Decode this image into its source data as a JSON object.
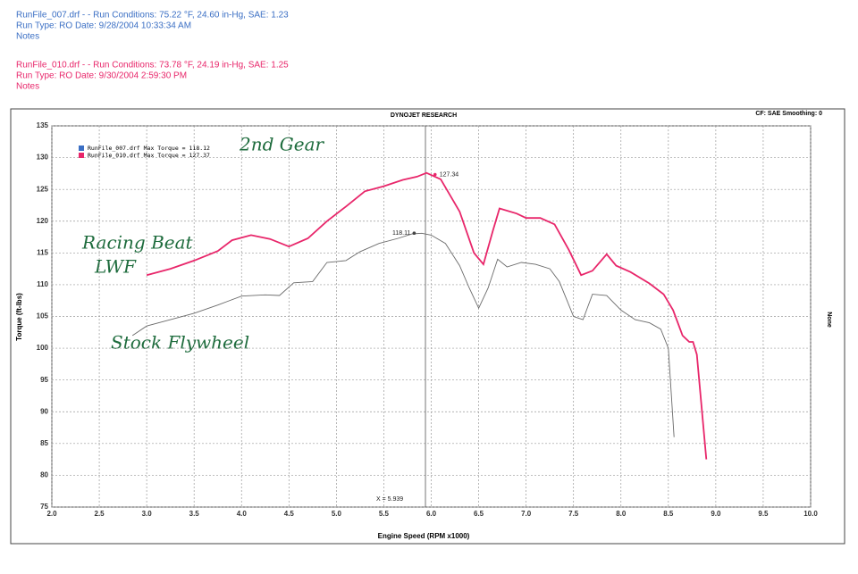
{
  "header": {
    "run1": [
      "RunFile_007.drf -  -  Run Conditions: 75.22 °F, 24.60 in-Hg, SAE: 1.23",
      "Run Type: RO  Date: 9/28/2004 10:33:34 AM",
      "Notes"
    ],
    "run2": [
      "RunFile_010.drf -  -  Run Conditions: 73.78 °F, 24.19 in-Hg, SAE: 1.25",
      "Run Type: RO  Date: 9/30/2004 2:59:30 PM",
      "Notes"
    ]
  },
  "chart_data": {
    "type": "line",
    "title": "DYNOJET RESEARCH",
    "subtitle": "CF: SAE  Smoothing: 0",
    "x_label": "Engine Speed (RPM x1000)",
    "y_label": "Torque (ft-lbs)",
    "y2_label": "None",
    "xlim": [
      2.0,
      10.0
    ],
    "ylim": [
      75,
      135
    ],
    "xticks": [
      {
        "value": 2.0,
        "label": "2.0"
      },
      {
        "value": 2.5,
        "label": "2.5"
      },
      {
        "value": 3.0,
        "label": "3.0"
      },
      {
        "value": 3.5,
        "label": "3.5"
      },
      {
        "value": 4.0,
        "label": "4.0"
      },
      {
        "value": 4.5,
        "label": "4.5"
      },
      {
        "value": 5.0,
        "label": "5.0"
      },
      {
        "value": 5.5,
        "label": "5.5"
      },
      {
        "value": 6.0,
        "label": "6.0"
      },
      {
        "value": 6.5,
        "label": "6.5"
      },
      {
        "value": 7.0,
        "label": "7.0"
      },
      {
        "value": 7.5,
        "label": "7.5"
      },
      {
        "value": 8.0,
        "label": "8.0"
      },
      {
        "value": 8.5,
        "label": "8.5"
      },
      {
        "value": 9.0,
        "label": "9.0"
      },
      {
        "value": 9.5,
        "label": "9.5"
      },
      {
        "value": 10.0,
        "label": "10.0"
      }
    ],
    "yticks": [
      75,
      80,
      85,
      90,
      95,
      100,
      105,
      110,
      115,
      120,
      125,
      130,
      135
    ],
    "grid": true,
    "series": [
      {
        "name": "RunFile_007.drf Max Torque = 118.12",
        "color": "#6a6a6a",
        "legend_color": "#3b6fc4",
        "x": [
          2.85,
          3.0,
          3.25,
          3.5,
          3.75,
          4.0,
          4.25,
          4.4,
          4.55,
          4.75,
          4.9,
          5.1,
          5.25,
          5.45,
          5.65,
          5.8,
          5.9,
          6.0,
          6.15,
          6.3,
          6.4,
          6.5,
          6.6,
          6.7,
          6.8,
          6.95,
          7.1,
          7.25,
          7.35,
          7.5,
          7.6,
          7.7,
          7.85,
          8.0,
          8.15,
          8.3,
          8.42,
          8.5,
          8.53,
          8.56
        ],
        "values": [
          102,
          103.5,
          104.5,
          105.5,
          106.8,
          108.2,
          108.4,
          108.3,
          110.3,
          110.5,
          113.5,
          113.8,
          115.2,
          116.5,
          117.3,
          118.0,
          118.1,
          117.8,
          116.5,
          113.0,
          109.5,
          106.3,
          109.5,
          114.0,
          112.8,
          113.5,
          113.2,
          112.5,
          110.5,
          105.0,
          104.5,
          108.5,
          108.3,
          106.0,
          104.5,
          104.0,
          103.0,
          100.0,
          93.0,
          86.0
        ]
      },
      {
        "name": "RunFile_010.drf Max Torque = 127.37",
        "color": "#e8266a",
        "legend_color": "#e8266a",
        "x": [
          3.0,
          3.25,
          3.5,
          3.75,
          3.9,
          4.1,
          4.3,
          4.5,
          4.7,
          4.9,
          5.1,
          5.3,
          5.5,
          5.7,
          5.85,
          5.95,
          6.1,
          6.3,
          6.45,
          6.55,
          6.65,
          6.72,
          6.9,
          7.0,
          7.15,
          7.3,
          7.45,
          7.58,
          7.7,
          7.85,
          7.95,
          8.1,
          8.3,
          8.45,
          8.55,
          8.65,
          8.72,
          8.76,
          8.8,
          8.9
        ],
        "values": [
          111.5,
          112.5,
          113.8,
          115.3,
          117.0,
          117.8,
          117.2,
          116.0,
          117.3,
          120.0,
          122.3,
          124.7,
          125.5,
          126.5,
          127.0,
          127.6,
          126.6,
          121.5,
          115.0,
          113.2,
          118.5,
          122.0,
          121.2,
          120.5,
          120.5,
          119.5,
          115.5,
          111.5,
          112.2,
          114.8,
          113.0,
          112.0,
          110.2,
          108.5,
          106.0,
          102.0,
          101.0,
          101.0,
          99.0,
          82.5
        ]
      }
    ],
    "point_labels": [
      {
        "x": 6.04,
        "y": 127.34
      },
      {
        "x": 5.82,
        "y": 118.11
      }
    ],
    "cursor": {
      "value": 5.939,
      "label": "X = 5.939"
    },
    "handwritten": [
      "2nd Gear",
      "Racing Beat",
      "LWF",
      "Stock Flywheel"
    ]
  }
}
